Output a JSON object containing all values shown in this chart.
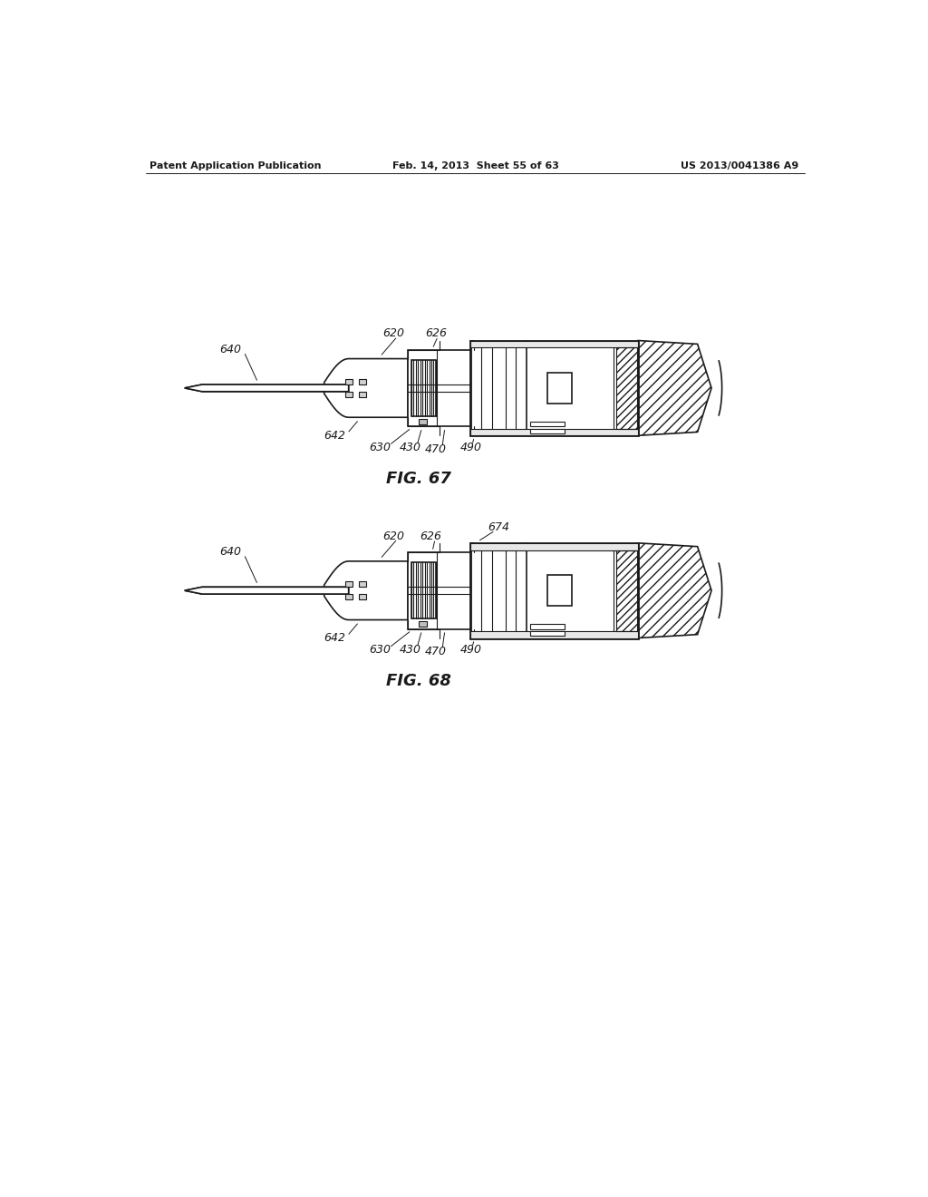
{
  "background_color": "#ffffff",
  "header_left": "Patent Application Publication",
  "header_center": "Feb. 14, 2013  Sheet 55 of 63",
  "header_right": "US 2013/0041386 A9",
  "fig67_label": "FIG. 67",
  "fig68_label": "FIG. 68",
  "lc": "#1a1a1a",
  "lw_thin": 0.8,
  "lw_med": 1.2,
  "lw_thick": 2.0
}
